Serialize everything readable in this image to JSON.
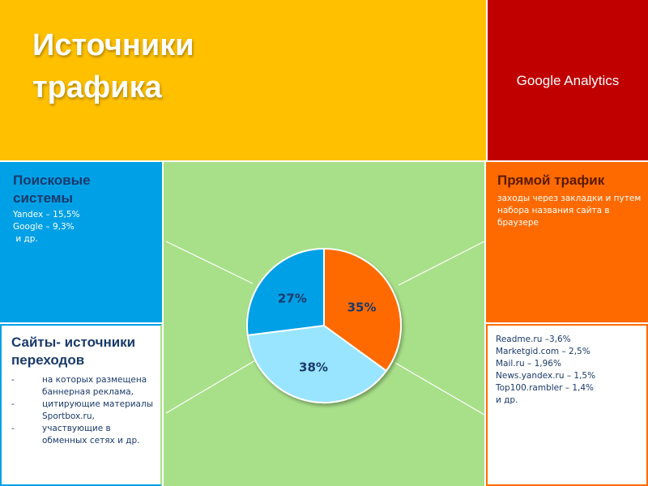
{
  "title": {
    "line1": "Источники",
    "line2": "трафика"
  },
  "source_label": "Google Analytics",
  "search_panel": {
    "heading_line1": "Поисковые",
    "heading_line2": "системы",
    "items": [
      "Yandex – 15,5%",
      "Google – 9,3%",
      " и др."
    ]
  },
  "direct_panel": {
    "heading": "Прямой трафик",
    "description": "заходы через закладки и путем набора названия сайта в браузере"
  },
  "sites_panel": {
    "heading_line1": "Сайты- источники",
    "heading_line2": "переходов",
    "bullets": [
      {
        "dash": "-",
        "text": "на которых размещена баннерная реклама,"
      },
      {
        "dash": "-",
        "text": "цитирующие материалы Sportbox.ru,"
      },
      {
        "dash": "-",
        "text": "участвующие в обменных сетях и др."
      }
    ]
  },
  "referrers_panel": {
    "items": [
      "Readme.ru –3,6%",
      "Marketgid.com – 2,5%",
      "Mail.ru – 1,96%",
      "News.yandex.ru – 1,5%",
      "Top100.rambler – 1,4%",
      "и др."
    ]
  },
  "colors": {
    "yellow": "#ffc000",
    "dark_red": "#c00000",
    "blue": "#00a0e6",
    "green": "#a8e089",
    "orange": "#ff6a00",
    "light_blue": "#99e5ff",
    "dark_text": "#1a3a6b"
  },
  "chart_data": {
    "type": "pie",
    "title": "",
    "slices": [
      {
        "label": "35%",
        "value": 35,
        "color": "#ff6a00"
      },
      {
        "label": "38%",
        "value": 38,
        "color": "#99e5ff"
      },
      {
        "label": "27%",
        "value": 27,
        "color": "#00a0e6"
      }
    ],
    "start_angle_deg": 0,
    "legend": "none"
  }
}
